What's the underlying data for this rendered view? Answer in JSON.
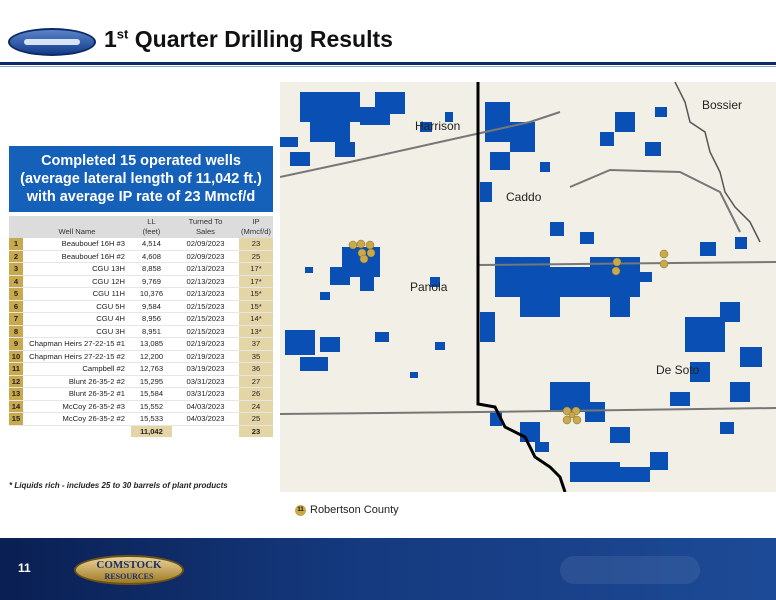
{
  "header": {
    "logo_icon": "comstock-oval-logo-icon",
    "title_prefix": "1",
    "title_sup": "st",
    "title_rest": " Quarter Drilling Results"
  },
  "summary": {
    "line1": "Completed 15 operated wells",
    "line2": "(average lateral length of 11,042 ft.)",
    "line3": "with average IP rate of 23 Mmcf/d"
  },
  "table": {
    "headers": {
      "well_name": "Well Name",
      "ll_top": "LL",
      "ll_bottom": "(feet)",
      "sales_top": "Turned To",
      "sales_bottom": "Sales",
      "ip_top": "IP",
      "ip_bottom": "(Mmcf/d)"
    },
    "rows": [
      {
        "n": "1",
        "name": "Beaubouef 16H #3",
        "ll": "4,514",
        "date": "02/09/2023",
        "ip": "23"
      },
      {
        "n": "2",
        "name": "Beaubouef 16H #2",
        "ll": "4,608",
        "date": "02/09/2023",
        "ip": "25"
      },
      {
        "n": "3",
        "name": "CGU 13H",
        "ll": "8,858",
        "date": "02/13/2023",
        "ip": "17*"
      },
      {
        "n": "4",
        "name": "CGU 12H",
        "ll": "9,769",
        "date": "02/13/2023",
        "ip": "17*"
      },
      {
        "n": "5",
        "name": "CGU 11H",
        "ll": "10,376",
        "date": "02/13/2023",
        "ip": "15*"
      },
      {
        "n": "6",
        "name": "CGU 5H",
        "ll": "9,584",
        "date": "02/15/2023",
        "ip": "15*"
      },
      {
        "n": "7",
        "name": "CGU 4H",
        "ll": "8,956",
        "date": "02/15/2023",
        "ip": "14*"
      },
      {
        "n": "8",
        "name": "CGU 3H",
        "ll": "8,951",
        "date": "02/15/2023",
        "ip": "13*"
      },
      {
        "n": "9",
        "name": "Chapman Heirs 27-22-15 #1",
        "ll": "13,085",
        "date": "02/19/2023",
        "ip": "37"
      },
      {
        "n": "10",
        "name": "Chapman Heirs 27-22-15 #2",
        "ll": "12,200",
        "date": "02/19/2023",
        "ip": "35"
      },
      {
        "n": "11",
        "name": "Campbell #2",
        "ll": "12,763",
        "date": "03/19/2023",
        "ip": "36"
      },
      {
        "n": "12",
        "name": "Blunt 26-35-2 #2",
        "ll": "15,295",
        "date": "03/31/2023",
        "ip": "27"
      },
      {
        "n": "13",
        "name": "Blunt 26-35-2 #1",
        "ll": "15,584",
        "date": "03/31/2023",
        "ip": "26"
      },
      {
        "n": "14",
        "name": "McCoy 26-35-2 #3",
        "ll": "15,552",
        "date": "04/03/2023",
        "ip": "24"
      },
      {
        "n": "15",
        "name": "McCoy 26-35-2 #2",
        "ll": "15,533",
        "date": "04/03/2023",
        "ip": "25"
      }
    ],
    "total_ll": "11,042",
    "total_ip": "23"
  },
  "footnote": "* Liquids rich - includes 25 to 30 barrels of plant products",
  "map": {
    "labels": {
      "harrison": "Harrison",
      "bossier": "Bossier",
      "caddo": "Caddo",
      "panola": "Panola",
      "desoto": "De Soto"
    },
    "well_markers": [
      "1",
      "2",
      "3",
      "4",
      "5",
      "6",
      "7",
      "8",
      "9",
      "10",
      "11",
      "12",
      "13",
      "14",
      "15"
    ],
    "colors": {
      "acreage": "#0a4fb4",
      "background": "#f1efe6",
      "marker": "#c8a94d"
    }
  },
  "legend": {
    "marker_number": "11",
    "label": "Robertson County"
  },
  "footer": {
    "page_number": "11",
    "logo_line1": "COMSTOCK",
    "logo_line2": "RESOURCES",
    "colors": {
      "footer": "#15397e"
    }
  }
}
